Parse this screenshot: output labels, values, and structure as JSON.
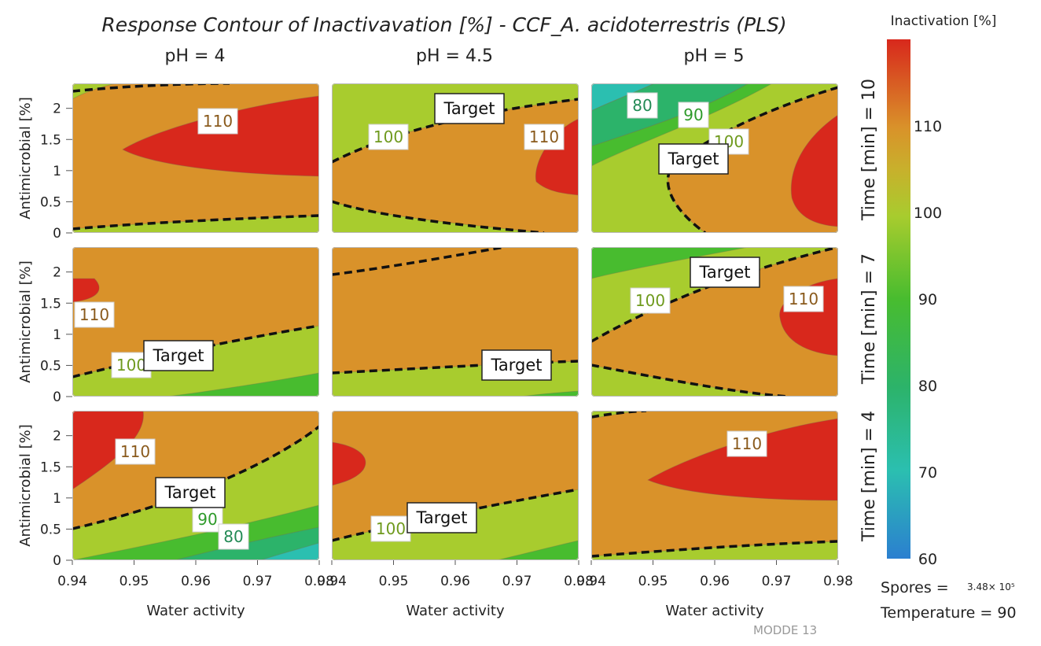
{
  "chart_data": {
    "type": "contour",
    "title": "Response Contour of Inactivavation [%] - CCF_A. acidoterrestris (PLS)",
    "column_titles": [
      "pH = 4",
      "pH = 4.5",
      "pH = 5"
    ],
    "row_titles": [
      "Time [min] = 10",
      "Time [min] = 7",
      "Time [min] = 4"
    ],
    "xlabel": "Water activity",
    "ylabel": "Antimicrobial [%]",
    "xlim": [
      0.94,
      0.98
    ],
    "ylim": [
      0,
      2.4
    ],
    "x_ticks": [
      "0.94",
      "0.95",
      "0.96",
      "0.97",
      "0.98"
    ],
    "y_ticks": [
      "0",
      "0.5",
      "1",
      "1.5",
      "2"
    ],
    "colorbar": {
      "title": "Inactivation [%]",
      "range": [
        60,
        120
      ],
      "ticks": [
        "60",
        "70",
        "80",
        "90",
        "100",
        "110"
      ],
      "colors": {
        "60": "#2b7fd0",
        "70": "#2bbfb0",
        "80": "#2cb36a",
        "90": "#48bc2f",
        "100": "#a8cc2e",
        "110": "#d9922a",
        "120": "#d8281c"
      }
    },
    "contour_levels": [
      60,
      70,
      80,
      90,
      100,
      110
    ],
    "target_label": "Target",
    "panels": [
      {
        "row": 0,
        "col": 0,
        "labels": [
          "110"
        ],
        "target": true
      },
      {
        "row": 0,
        "col": 1,
        "labels": [
          "100",
          "110"
        ],
        "target": true
      },
      {
        "row": 0,
        "col": 2,
        "labels": [
          "80",
          "90",
          "100",
          "110"
        ],
        "target": true
      },
      {
        "row": 1,
        "col": 0,
        "labels": [
          "110",
          "100"
        ],
        "target": true
      },
      {
        "row": 1,
        "col": 1,
        "labels": [],
        "target": true
      },
      {
        "row": 1,
        "col": 2,
        "labels": [
          "100",
          "110"
        ],
        "target": true
      },
      {
        "row": 2,
        "col": 0,
        "labels": [
          "110",
          "90",
          "80"
        ],
        "target": true
      },
      {
        "row": 2,
        "col": 1,
        "labels": [
          "100"
        ],
        "target": true
      },
      {
        "row": 2,
        "col": 2,
        "labels": [
          "110"
        ],
        "target": true
      }
    ],
    "footer": {
      "spores_label": "Spores =",
      "spores_value": "3.48× 10⁵",
      "temperature": "Temperature = 90"
    },
    "watermark": "MODDE 13"
  }
}
